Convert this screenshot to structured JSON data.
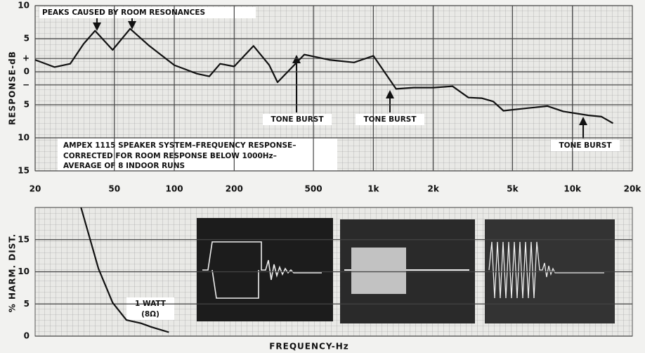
{
  "chart_data": [
    {
      "type": "line",
      "ylabel": "RESPONSE-dB",
      "color": "#111111",
      "log_x": true,
      "xlim": [
        20,
        20000
      ],
      "xticks": [
        20,
        50,
        100,
        200,
        500,
        {
          "value": 1000,
          "label": "1k"
        },
        {
          "value": 2000,
          "label": "2k"
        },
        {
          "value": 5000,
          "label": "5k"
        },
        {
          "value": 10000,
          "label": "10k"
        },
        {
          "value": 20000,
          "label": "20k"
        }
      ],
      "ylim": [
        -15,
        10
      ],
      "yticks": [
        10,
        5,
        {
          "value": 2,
          "label": "+"
        },
        0,
        {
          "value": -2,
          "label": "−"
        },
        {
          "value": -5,
          "label": "5"
        },
        {
          "value": -10,
          "label": "10"
        },
        {
          "value": -15,
          "label": "15"
        }
      ],
      "x": [
        20,
        25,
        30,
        35,
        40,
        49,
        60,
        75,
        100,
        130,
        150,
        170,
        200,
        250,
        300,
        330,
        400,
        450,
        600,
        800,
        1000,
        1300,
        1600,
        2000,
        2500,
        3000,
        3500,
        4000,
        4500,
        6000,
        7500,
        9000,
        12000,
        14000,
        16000
      ],
      "values": [
        1.8,
        0.7,
        1.2,
        4.2,
        6.2,
        3.3,
        6.5,
        3.9,
        1.0,
        -0.3,
        -0.7,
        1.2,
        0.8,
        3.9,
        1.0,
        -1.6,
        1.0,
        2.6,
        1.8,
        1.4,
        2.4,
        -2.6,
        -2.4,
        -2.4,
        -2.2,
        -3.9,
        -4.0,
        -4.5,
        -5.9,
        -5.5,
        -5.2,
        -6.0,
        -6.6,
        -6.8,
        -7.8
      ],
      "annotations": [
        "PEAKS CAUSED BY ROOM RESONANCES",
        "TONE BURST",
        "TONE BURST",
        "TONE BURST",
        "AMPEX 1115 SPEAKER SYSTEM–FREQUENCY RESPONSE–",
        "CORRECTED FOR ROOM RESPONSE BELOW 1000Hz–",
        "AVERAGE OF 8 INDOOR RUNS"
      ]
    },
    {
      "type": "line",
      "ylabel": "% HARM. DIST.",
      "xlabel": "FREQUENCY-Hz",
      "color": "#111111",
      "log_x": true,
      "xlim": [
        20,
        20000
      ],
      "ylim": [
        0,
        20
      ],
      "yticks": [
        0,
        5,
        10,
        15
      ],
      "x": [
        34,
        41.6,
        49,
        57.5,
        68,
        77,
        94
      ],
      "values": [
        20,
        10.5,
        5.2,
        2.5,
        2.0,
        1.4,
        0.6
      ],
      "annotations": [
        "1 WATT",
        "(8Ω)"
      ]
    }
  ]
}
